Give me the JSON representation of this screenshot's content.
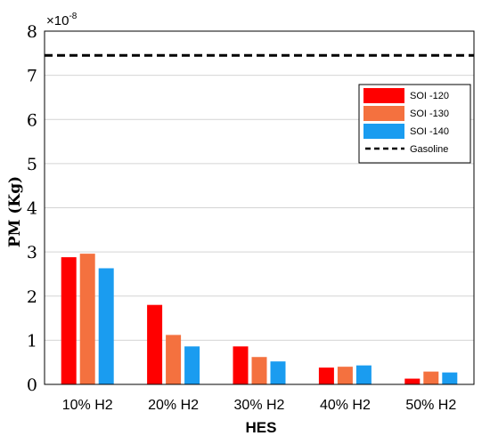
{
  "chart_data": {
    "type": "bar",
    "xlabel": "HES",
    "ylabel": "PM (Kg)",
    "y_multiplier": "×10",
    "y_multiplier_exponent": "-8",
    "ylim": [
      0,
      8
    ],
    "yticks": [
      "0",
      "1",
      "2",
      "3",
      "4",
      "5",
      "6",
      "7",
      "8"
    ],
    "grid": "horizontal",
    "legend_position": "right",
    "categories": [
      "10% H2",
      "20% H2",
      "30% H2",
      "40% H2",
      "50% H2"
    ],
    "series": [
      {
        "name": "SOI -120",
        "color": "#ff0000",
        "values": [
          2.88,
          1.8,
          0.86,
          0.38,
          0.13
        ]
      },
      {
        "name": "SOI -130",
        "color": "#f4713f",
        "values": [
          2.96,
          1.12,
          0.62,
          0.4,
          0.29
        ]
      },
      {
        "name": "SOI -140",
        "color": "#1a9cf0",
        "values": [
          2.63,
          0.86,
          0.52,
          0.43,
          0.27
        ]
      }
    ],
    "reference_line": {
      "name": "Gasoline",
      "value": 7.45,
      "style": "dashed",
      "color": "#000000"
    }
  }
}
